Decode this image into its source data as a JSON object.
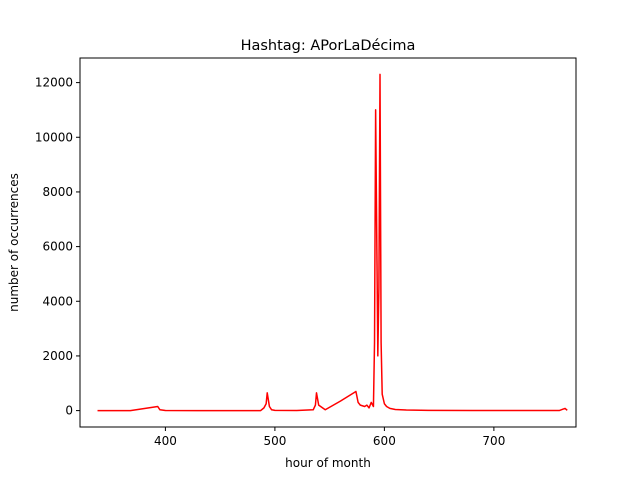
{
  "chart_data": {
    "type": "line",
    "title": "Hashtag: APorLaDécima",
    "xlabel": "hour of month",
    "ylabel": "number of occurrences",
    "xlim": [
      322,
      775
    ],
    "ylim": [
      -600,
      12900
    ],
    "xticks": [
      400,
      500,
      600,
      700
    ],
    "yticks": [
      0,
      2000,
      4000,
      6000,
      8000,
      10000,
      12000
    ],
    "grid": false,
    "line_color": "#ff0000",
    "series": [
      {
        "name": "APorLaDécima",
        "x": [
          338,
          368,
          393,
          395,
          400,
          430,
          460,
          487,
          490,
          492,
          493,
          495,
          497,
          500,
          520,
          535,
          537,
          538,
          540,
          546,
          560,
          574,
          576,
          578,
          582,
          584,
          586,
          588,
          590,
          591,
          592,
          594,
          595,
          596,
          597,
          598,
          600,
          602,
          605,
          610,
          620,
          640,
          680,
          720,
          760,
          763,
          765,
          767
        ],
        "y": [
          0,
          0,
          150,
          30,
          5,
          0,
          0,
          0,
          100,
          250,
          650,
          150,
          30,
          10,
          5,
          30,
          200,
          650,
          200,
          30,
          350,
          700,
          300,
          200,
          150,
          200,
          100,
          300,
          150,
          2500,
          11000,
          2000,
          4500,
          12300,
          2500,
          600,
          250,
          150,
          80,
          40,
          20,
          10,
          5,
          5,
          5,
          50,
          80,
          10
        ]
      }
    ]
  }
}
